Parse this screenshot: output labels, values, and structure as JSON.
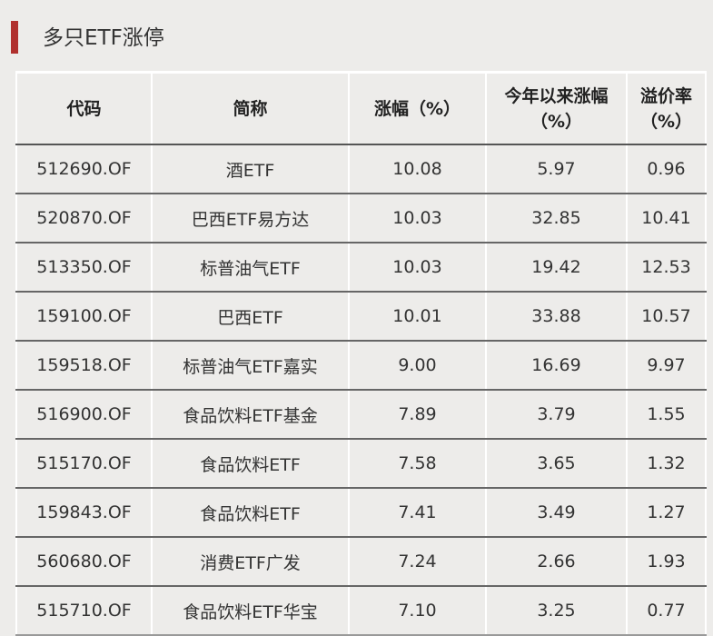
{
  "title": "多只ETF涨停",
  "colors": {
    "accent": "#b0302e"
  },
  "table": {
    "headers": [
      "代码",
      "简称",
      "涨幅（%）",
      "今年以来涨幅（%）",
      "溢价率（%）"
    ],
    "rows": [
      [
        "512690.OF",
        "酒ETF",
        "10.08",
        "5.97",
        "0.96"
      ],
      [
        "520870.OF",
        "巴西ETF易方达",
        "10.03",
        "32.85",
        "10.41"
      ],
      [
        "513350.OF",
        "标普油气ETF",
        "10.03",
        "19.42",
        "12.53"
      ],
      [
        "159100.OF",
        "巴西ETF",
        "10.01",
        "33.88",
        "10.57"
      ],
      [
        "159518.OF",
        "标普油气ETF嘉实",
        "9.00",
        "16.69",
        "9.97"
      ],
      [
        "516900.OF",
        "食品饮料ETF基金",
        "7.89",
        "3.79",
        "1.55"
      ],
      [
        "515170.OF",
        "食品饮料ETF",
        "7.58",
        "3.65",
        "1.32"
      ],
      [
        "159843.OF",
        "食品饮料ETF",
        "7.41",
        "3.49",
        "1.27"
      ],
      [
        "560680.OF",
        "消费ETF广发",
        "7.24",
        "2.66",
        "1.93"
      ],
      [
        "515710.OF",
        "食品饮料ETF华宝",
        "7.10",
        "3.25",
        "0.77"
      ]
    ]
  }
}
